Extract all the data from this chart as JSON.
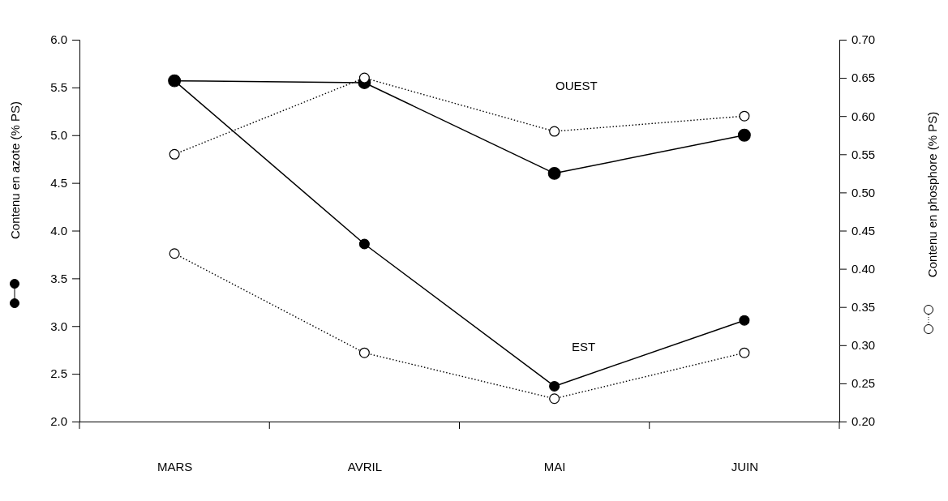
{
  "chart_data": {
    "type": "line",
    "categories": [
      "MARS",
      "AVRIL",
      "MAI",
      "JUIN"
    ],
    "ylabel": "Contenu en azote (% PS)",
    "y2label": "Contenu en phosphore (% PS)",
    "ylim": [
      2.0,
      6.0
    ],
    "yticks": [
      {
        "value": 2,
        "label": "2.0"
      },
      {
        "value": 2.5,
        "label": "2.5"
      },
      {
        "value": 3,
        "label": "3.0"
      },
      {
        "value": 3.5,
        "label": "3.5"
      },
      {
        "value": 4,
        "label": "4.0"
      },
      {
        "value": 4.5,
        "label": "4.5"
      },
      {
        "value": 5,
        "label": "5.0"
      },
      {
        "value": 5.5,
        "label": "5.5"
      },
      {
        "value": 6,
        "label": "6.0"
      }
    ],
    "y2lim": [
      0.2,
      0.7
    ],
    "y2ticks": [
      {
        "value": 0.2,
        "label": "0.20"
      },
      {
        "value": 0.25,
        "label": "0.25"
      },
      {
        "value": 0.3,
        "label": "0.30"
      },
      {
        "value": 0.35,
        "label": "0.35"
      },
      {
        "value": 0.4,
        "label": "0.40"
      },
      {
        "value": 0.45,
        "label": "0.45"
      },
      {
        "value": 0.5,
        "label": "0.50"
      },
      {
        "value": 0.55,
        "label": "0.55"
      },
      {
        "value": 0.6,
        "label": "0.60"
      },
      {
        "value": 0.65,
        "label": "0.65"
      },
      {
        "value": 0.7,
        "label": "0.70"
      }
    ],
    "marker": "circle",
    "grid": false,
    "series": [
      {
        "color": "#000000",
        "values": [
          5.57,
          5.55,
          4.6,
          5.0
        ],
        "line_style": "solid"
      },
      {
        "color": "#000000",
        "values": [
          5.57,
          3.86,
          2.37,
          3.06
        ],
        "line_style": "solid"
      },
      {
        "color": "#000000",
        "values": [
          0.55,
          0.65,
          0.58,
          0.6
        ],
        "axis": "y2",
        "line_style": "dotted"
      },
      {
        "color": "#000000",
        "values": [
          0.42,
          0.29,
          0.23,
          0.29
        ],
        "axis": "y2",
        "line_style": "dotted"
      }
    ],
    "annotations": [
      "OUEST",
      "EST"
    ]
  }
}
